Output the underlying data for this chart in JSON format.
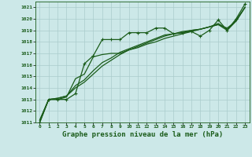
{
  "background_color": "#cce8e8",
  "grid_color": "#aacccc",
  "line_color": "#1a5c1a",
  "marker_color": "#1a5c1a",
  "xlabel": "Graphe pression niveau de la mer (hPa)",
  "xlabel_fontsize": 6.5,
  "xlim": [
    -0.5,
    23.5
  ],
  "ylim": [
    1011,
    1021.5
  ],
  "yticks": [
    1011,
    1012,
    1013,
    1014,
    1015,
    1016,
    1017,
    1018,
    1019,
    1020,
    1021
  ],
  "xticks": [
    0,
    1,
    2,
    3,
    4,
    5,
    6,
    7,
    8,
    9,
    10,
    11,
    12,
    13,
    14,
    15,
    16,
    17,
    18,
    19,
    20,
    21,
    22,
    23
  ],
  "series": [
    {
      "y": [
        1011.0,
        1013.0,
        1013.0,
        1013.0,
        1013.5,
        1016.1,
        1016.8,
        1018.2,
        1018.2,
        1018.2,
        1018.8,
        1018.8,
        1018.8,
        1019.2,
        1019.2,
        1018.7,
        1018.8,
        1018.9,
        1018.5,
        1019.0,
        1019.9,
        1019.0,
        1020.0,
        1021.3
      ],
      "marker": true,
      "lw": 0.9
    },
    {
      "y": [
        1011.0,
        1013.0,
        1013.0,
        1013.2,
        1014.8,
        1015.2,
        1016.7,
        1016.9,
        1017.0,
        1017.0,
        1017.3,
        1017.5,
        1017.8,
        1018.0,
        1018.3,
        1018.5,
        1018.7,
        1018.9,
        1019.1,
        1019.3,
        1019.5,
        1019.2,
        1019.8,
        1021.0
      ],
      "marker": false,
      "lw": 0.9
    },
    {
      "y": [
        1011.2,
        1013.0,
        1013.1,
        1013.3,
        1014.2,
        1014.7,
        1015.5,
        1016.2,
        1016.6,
        1017.1,
        1017.4,
        1017.7,
        1018.0,
        1018.3,
        1018.6,
        1018.7,
        1018.9,
        1019.0,
        1019.1,
        1019.3,
        1019.6,
        1019.1,
        1019.9,
        1021.0
      ],
      "marker": false,
      "lw": 0.9
    },
    {
      "y": [
        1011.2,
        1013.0,
        1013.1,
        1013.3,
        1014.0,
        1014.5,
        1015.2,
        1015.9,
        1016.4,
        1016.9,
        1017.3,
        1017.6,
        1017.9,
        1018.2,
        1018.5,
        1018.7,
        1018.8,
        1019.0,
        1019.1,
        1019.3,
        1019.5,
        1019.0,
        1019.8,
        1021.0
      ],
      "marker": false,
      "lw": 0.9
    }
  ]
}
